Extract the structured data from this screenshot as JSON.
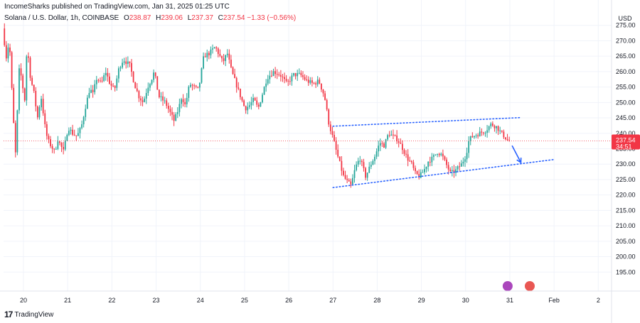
{
  "header": {
    "publisher": "IncomeSharks published on TradingView.com, Jan 31, 2025 01:25 UTC"
  },
  "symbol": {
    "name": "Solana / U.S. Dollar, 1h, COINBASE",
    "open_label": "O",
    "open": "238.87",
    "high_label": "H",
    "high": "239.06",
    "low_label": "L",
    "low": "237.37",
    "close_label": "C",
    "close": "237.54",
    "change": "−1.33 (−0.56%)"
  },
  "footer": {
    "brand": "TradingView",
    "logo_text": "17"
  },
  "colors": {
    "up": "#26a69a",
    "down": "#f23645",
    "trend": "#2962ff",
    "arrow": "#2962ff",
    "grid": "#f0f3fa",
    "axis_text": "#131722"
  },
  "chart_data": {
    "type": "candlestick",
    "currency": "USD",
    "ylim": [
      190,
      280
    ],
    "y_ticks": [
      "275.00",
      "270.00",
      "265.00",
      "260.00",
      "255.00",
      "250.00",
      "245.00",
      "240.00",
      "235.00",
      "230.00",
      "225.00",
      "220.00",
      "215.00",
      "210.00",
      "205.00",
      "200.00",
      "195.00"
    ],
    "y_tick_values": [
      275,
      270,
      265,
      260,
      255,
      250,
      245,
      240,
      235,
      230,
      225,
      220,
      215,
      210,
      205,
      200,
      195
    ],
    "x_ticks": [
      "20",
      "21",
      "22",
      "23",
      "24",
      "25",
      "26",
      "27",
      "28",
      "29",
      "30",
      "31",
      "Feb",
      "2"
    ],
    "x_tick_days": [
      1,
      2,
      3,
      4,
      5,
      6,
      7,
      8,
      9,
      10,
      11,
      12,
      13,
      14
    ],
    "x_range_days": [
      0.55,
      14.3
    ],
    "price_label": {
      "price": "237.54",
      "countdown": "34:51"
    },
    "waypoints": [
      [
        0.57,
        274
      ],
      [
        0.66,
        264
      ],
      [
        0.72,
        271
      ],
      [
        0.8,
        248
      ],
      [
        0.86,
        233
      ],
      [
        0.95,
        262
      ],
      [
        1.08,
        250
      ],
      [
        1.12,
        269
      ],
      [
        1.2,
        258
      ],
      [
        1.28,
        253
      ],
      [
        1.36,
        245
      ],
      [
        1.44,
        252
      ],
      [
        1.55,
        240
      ],
      [
        1.62,
        237
      ],
      [
        1.75,
        234
      ],
      [
        1.82,
        238
      ],
      [
        1.95,
        234
      ],
      [
        2.05,
        242
      ],
      [
        2.15,
        240
      ],
      [
        2.25,
        239
      ],
      [
        2.35,
        242
      ],
      [
        2.45,
        249
      ],
      [
        2.55,
        255
      ],
      [
        2.6,
        252
      ],
      [
        2.7,
        258
      ],
      [
        2.8,
        256
      ],
      [
        2.9,
        260
      ],
      [
        3.0,
        256
      ],
      [
        3.1,
        254
      ],
      [
        3.2,
        261
      ],
      [
        3.3,
        264
      ],
      [
        3.45,
        262
      ],
      [
        3.55,
        256
      ],
      [
        3.65,
        252
      ],
      [
        3.75,
        250
      ],
      [
        3.85,
        255
      ],
      [
        3.95,
        258
      ],
      [
        4.0,
        260
      ],
      [
        4.1,
        252
      ],
      [
        4.25,
        250
      ],
      [
        4.35,
        247
      ],
      [
        4.45,
        244
      ],
      [
        4.55,
        248
      ],
      [
        4.62,
        252
      ],
      [
        4.7,
        249
      ],
      [
        4.8,
        256
      ],
      [
        5.0,
        254
      ],
      [
        5.12,
        265
      ],
      [
        5.25,
        266
      ],
      [
        5.38,
        268
      ],
      [
        5.45,
        266
      ],
      [
        5.55,
        263
      ],
      [
        5.65,
        266
      ],
      [
        5.75,
        260
      ],
      [
        5.85,
        256
      ],
      [
        5.95,
        252
      ],
      [
        6.05,
        248
      ],
      [
        6.15,
        249
      ],
      [
        6.25,
        251
      ],
      [
        6.35,
        248
      ],
      [
        6.45,
        253
      ],
      [
        6.55,
        258
      ],
      [
        6.7,
        260
      ],
      [
        6.85,
        259
      ],
      [
        7.0,
        256
      ],
      [
        7.15,
        259
      ],
      [
        7.3,
        259
      ],
      [
        7.45,
        257
      ],
      [
        7.6,
        256
      ],
      [
        7.72,
        257
      ],
      [
        7.85,
        252
      ],
      [
        7.95,
        243
      ],
      [
        8.05,
        238
      ],
      [
        8.12,
        234
      ],
      [
        8.2,
        230
      ],
      [
        8.28,
        226
      ],
      [
        8.38,
        224
      ],
      [
        8.45,
        223
      ],
      [
        8.55,
        229
      ],
      [
        8.65,
        232
      ],
      [
        8.78,
        226
      ],
      [
        8.9,
        230
      ],
      [
        9.0,
        233
      ],
      [
        9.1,
        237
      ],
      [
        9.2,
        236
      ],
      [
        9.3,
        240
      ],
      [
        9.4,
        239
      ],
      [
        9.5,
        238
      ],
      [
        9.62,
        235
      ],
      [
        9.72,
        232
      ],
      [
        9.82,
        230
      ],
      [
        9.9,
        227
      ],
      [
        10.0,
        226
      ],
      [
        10.1,
        228
      ],
      [
        10.2,
        231
      ],
      [
        10.3,
        232
      ],
      [
        10.4,
        234
      ],
      [
        10.5,
        233
      ],
      [
        10.6,
        230
      ],
      [
        10.7,
        227
      ],
      [
        10.82,
        228
      ],
      [
        10.95,
        230
      ],
      [
        11.05,
        233
      ],
      [
        11.12,
        238
      ],
      [
        11.2,
        239
      ],
      [
        11.35,
        240
      ],
      [
        11.5,
        241
      ],
      [
        11.62,
        243
      ],
      [
        11.75,
        242
      ],
      [
        11.85,
        240
      ],
      [
        11.92,
        239
      ],
      [
        12.0,
        237.5
      ]
    ],
    "trendlines": [
      {
        "name": "upper-channel",
        "from": [
          8.0,
          242.3
        ],
        "to": [
          12.25,
          245.1
        ]
      },
      {
        "name": "lower-channel",
        "from": [
          8.0,
          222.4
        ],
        "to": [
          13.0,
          231.5
        ]
      }
    ],
    "projection_arrow": {
      "from": [
        12.05,
        236.0
      ],
      "to": [
        12.25,
        230.5
      ]
    },
    "icons": [
      "event-flag-icon",
      "earnings-icon"
    ]
  }
}
